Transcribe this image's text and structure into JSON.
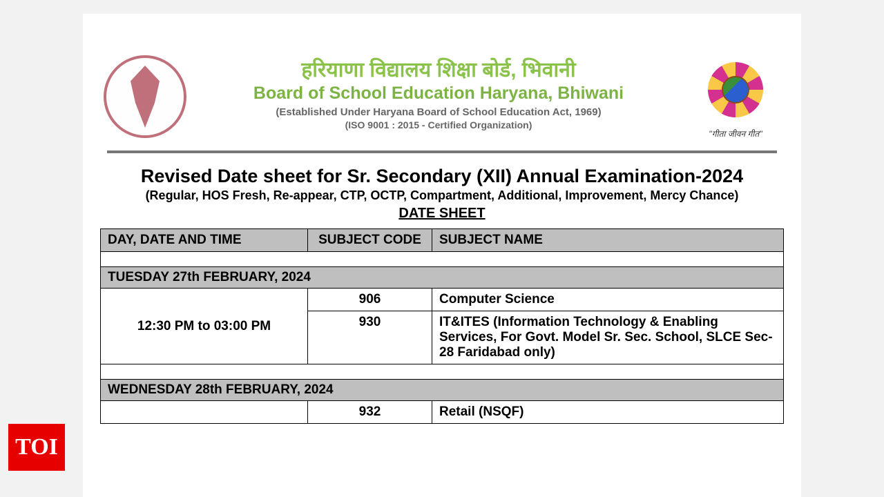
{
  "header": {
    "hindi_title": "हरियाणा विद्यालय शिक्षा बोर्ड, भिवानी",
    "eng_title": "Board of School Education Haryana, Bhiwani",
    "established": "(Established Under Haryana Board of School Education Act, 1969)",
    "iso": "(ISO 9001 : 2015 - Certified Organization)",
    "motto": "''गीता जीवन गीत''"
  },
  "title": {
    "main": "Revised Date sheet for Sr. Secondary (XII) Annual Examination-2024",
    "sub": "(Regular, HOS Fresh, Re-appear, CTP, OCTP, Compartment, Additional, Improvement, Mercy Chance)",
    "label": "DATE SHEET"
  },
  "table": {
    "headers": {
      "date": "DAY, DATE AND TIME",
      "code": "SUBJECT CODE",
      "subject": "SUBJECT NAME"
    },
    "day1": {
      "date": "TUESDAY 27th FEBRUARY, 2024",
      "time": "12:30 PM to 03:00 PM",
      "row1_code": "906",
      "row1_subj": "Computer Science",
      "row2_code": "930",
      "row2_subj": " IT&ITES  (Information Technology & Enabling Services, For Govt. Model Sr. Sec. School, SLCE Sec-28 Faridabad only)"
    },
    "day2": {
      "date": "WEDNESDAY 28th FEBRUARY, 2024",
      "row1_code": "932",
      "row1_subj": "Retail (NSQF)"
    }
  },
  "badge": "TOI",
  "colors": {
    "page_bg": "#ffffff",
    "body_bg": "#f2f2f2",
    "header_green": "#8bc34a",
    "subheader_green": "#7cb342",
    "gray_text": "#666666",
    "table_header_bg": "#bfbfbf",
    "border": "#000000",
    "badge_bg": "#e60000",
    "logo_rose": "#c0707a"
  }
}
